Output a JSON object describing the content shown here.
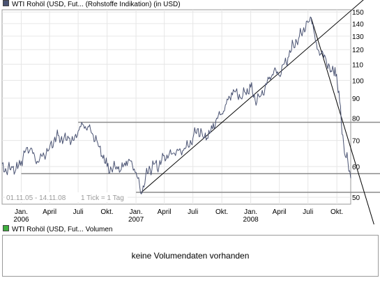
{
  "price_panel": {
    "title": "WTI Rohöl (USD, Fut... (Rohstoffe Indikation) (in USD)",
    "swatch_color": "#4a5373",
    "range_label": "01.11.05 - 14.11.08",
    "tick_label": "1 Tick = 1 Tag"
  },
  "volume_panel": {
    "title": "WTI Rohöl (USD, Fut... Volumen",
    "swatch_color": "#3fae3f",
    "message": "keine Volumendaten vorhanden"
  },
  "chart_data": {
    "type": "line",
    "line_color": "#4a5373",
    "y_scale": "log",
    "ylim": [
      48,
      152
    ],
    "y_ticks": [
      50,
      60,
      70,
      80,
      90,
      100,
      110,
      120,
      130,
      140,
      150
    ],
    "xlim": [
      "2005-11-01",
      "2008-11-14"
    ],
    "x_ticks": [
      {
        "date": "2006-01-01",
        "label": "Jan.",
        "year": "2006"
      },
      {
        "date": "2006-04-01",
        "label": "April",
        "year": ""
      },
      {
        "date": "2006-07-01",
        "label": "Juli",
        "year": ""
      },
      {
        "date": "2006-10-01",
        "label": "Okt.",
        "year": ""
      },
      {
        "date": "2007-01-01",
        "label": "Jan.",
        "year": "2007"
      },
      {
        "date": "2007-04-01",
        "label": "April",
        "year": ""
      },
      {
        "date": "2007-07-01",
        "label": "Juli",
        "year": ""
      },
      {
        "date": "2007-10-01",
        "label": "Okt.",
        "year": ""
      },
      {
        "date": "2008-01-01",
        "label": "Jan.",
        "year": "2008"
      },
      {
        "date": "2008-04-01",
        "label": "April",
        "year": ""
      },
      {
        "date": "2008-07-01",
        "label": "Juli",
        "year": ""
      },
      {
        "date": "2008-10-01",
        "label": "Okt.",
        "year": ""
      }
    ],
    "grid": true,
    "series": [
      {
        "x": [
          "2005-11-01",
          "2005-11-15",
          "2005-12-01",
          "2005-12-15",
          "2006-01-01",
          "2006-01-15",
          "2006-02-01",
          "2006-02-15",
          "2006-03-01",
          "2006-03-15",
          "2006-04-01",
          "2006-04-15",
          "2006-05-01",
          "2006-05-15",
          "2006-06-01",
          "2006-06-15",
          "2006-07-01",
          "2006-07-15",
          "2006-08-01",
          "2006-08-15",
          "2006-09-01",
          "2006-09-15",
          "2006-10-01",
          "2006-10-15",
          "2006-11-01",
          "2006-11-15",
          "2006-12-01",
          "2006-12-15",
          "2007-01-01",
          "2007-01-18",
          "2007-02-01",
          "2007-02-15",
          "2007-03-01",
          "2007-03-15",
          "2007-04-01",
          "2007-04-15",
          "2007-05-01",
          "2007-05-15",
          "2007-06-01",
          "2007-06-15",
          "2007-07-01",
          "2007-07-15",
          "2007-08-01",
          "2007-08-15",
          "2007-09-01",
          "2007-09-15",
          "2007-10-01",
          "2007-10-15",
          "2007-11-01",
          "2007-11-15",
          "2007-12-01",
          "2007-12-15",
          "2008-01-01",
          "2008-01-15",
          "2008-02-01",
          "2008-02-15",
          "2008-03-01",
          "2008-03-15",
          "2008-04-01",
          "2008-04-15",
          "2008-05-01",
          "2008-05-15",
          "2008-06-01",
          "2008-06-15",
          "2008-07-01",
          "2008-07-11",
          "2008-07-25",
          "2008-08-10",
          "2008-08-25",
          "2008-09-10",
          "2008-09-25",
          "2008-10-10",
          "2008-10-25",
          "2008-11-05",
          "2008-11-14"
        ],
        "y": [
          61,
          58,
          60,
          59,
          62,
          66,
          67,
          62,
          63,
          64,
          67,
          70,
          72,
          70,
          71,
          70,
          74,
          77,
          76,
          73,
          69,
          64,
          60,
          59,
          60,
          59,
          62,
          62,
          58,
          51,
          57,
          59,
          61,
          60,
          64,
          64,
          65,
          66,
          66,
          68,
          71,
          75,
          72,
          71,
          75,
          80,
          82,
          87,
          93,
          94,
          90,
          93,
          96,
          89,
          91,
          95,
          102,
          106,
          103,
          110,
          115,
          124,
          128,
          134,
          141,
          145,
          126,
          117,
          115,
          105,
          108,
          88,
          65,
          62,
          56
        ]
      }
    ],
    "support_lines": [
      {
        "from": "2006-01-01",
        "to": "2008-11-14",
        "value": 57.5
      },
      {
        "from": "2006-07-01",
        "to": "2008-11-14",
        "value": 78
      },
      {
        "from": "2007-01-01",
        "to": "2008-11-14",
        "value": 51.5
      }
    ],
    "trend_lines": [
      {
        "from": {
          "x": "2007-01-18",
          "y": 51.5
        },
        "to": {
          "x": "2008-11-14",
          "y": 151
        }
      },
      {
        "from": {
          "x": "2008-07-11",
          "y": 145
        },
        "to": {
          "x": "2008-11-14",
          "y": 67
        }
      }
    ]
  }
}
